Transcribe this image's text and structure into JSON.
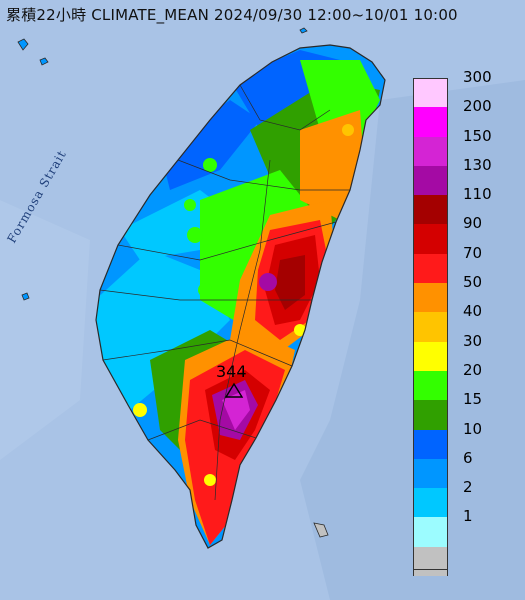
{
  "title": "累積22小時 CLIMATE_MEAN 2024/09/30 12:00~10/01 10:00",
  "sea_label": "Formosa Strait",
  "peak": {
    "value": "344",
    "marker": "triangle-marker"
  },
  "colors": {
    "sea": "#a9c3e6",
    "land_edge": "#2a2a2a"
  },
  "legend": {
    "items": [
      {
        "label": "300",
        "color": "#ffc8ff"
      },
      {
        "label": "200",
        "color": "#ff00ff"
      },
      {
        "label": "150",
        "color": "#d424d4"
      },
      {
        "label": "130",
        "color": "#a40aa4"
      },
      {
        "label": "110",
        "color": "#a40000"
      },
      {
        "label": "90",
        "color": "#d40000"
      },
      {
        "label": "70",
        "color": "#ff1a1a"
      },
      {
        "label": "50",
        "color": "#ff9100"
      },
      {
        "label": "40",
        "color": "#ffc400"
      },
      {
        "label": "30",
        "color": "#ffff00"
      },
      {
        "label": "20",
        "color": "#33ff00"
      },
      {
        "label": "15",
        "color": "#30a000"
      },
      {
        "label": "10",
        "color": "#0064ff"
      },
      {
        "label": "6",
        "color": "#0096ff"
      },
      {
        "label": "2",
        "color": "#00c8ff"
      },
      {
        "label": "1",
        "color": "#9cfcff"
      },
      {
        "label": "",
        "color": "#c1c1c1"
      }
    ]
  }
}
